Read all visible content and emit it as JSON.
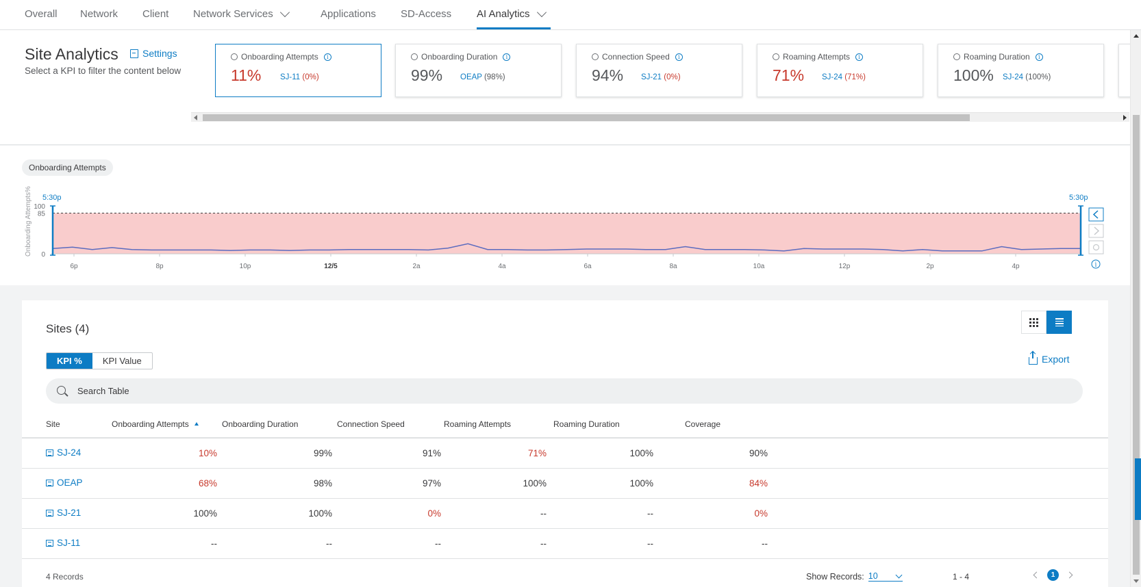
{
  "nav": {
    "tabs": [
      {
        "label": "Overall"
      },
      {
        "label": "Network"
      },
      {
        "label": "Client"
      },
      {
        "label": "Network Services"
      },
      {
        "label": "Applications"
      },
      {
        "label": "SD-Access"
      },
      {
        "label": "AI Analytics"
      }
    ],
    "active": "AI Analytics"
  },
  "site_analytics": {
    "title": "Site Analytics",
    "settings_label": "Settings",
    "subtitle": "Select a KPI to filter the content below",
    "kpis": [
      {
        "name": "Onboarding Attempts",
        "icon": "globe-icon",
        "value": "11%",
        "site": "SJ-11",
        "site_pct": "(0%)",
        "selected": true
      },
      {
        "name": "Onboarding Duration",
        "icon": "globe-icon",
        "value": "99%",
        "site": "OEAP",
        "site_pct": "(98%)",
        "selected": false
      },
      {
        "name": "Connection Speed",
        "icon": "signal-icon",
        "value": "94%",
        "site": "SJ-21",
        "site_pct": "(0%)",
        "selected": false
      },
      {
        "name": "Roaming Attempts",
        "icon": "clock-icon",
        "value": "71%",
        "site": "SJ-24",
        "site_pct": "(71%)",
        "selected": false
      },
      {
        "name": "Roaming Duration",
        "icon": "clock-icon",
        "value": "100%",
        "site": "SJ-24",
        "site_pct": "(100%)",
        "selected": false
      }
    ]
  },
  "chart": {
    "pill_label": "Onboarding Attempts",
    "ylabel": "Onboarding Attempts%",
    "y_ticks": [
      "100",
      "85",
      "0"
    ],
    "threshold": 85,
    "range_start_label": "5:30p",
    "range_end_label": "5:30p",
    "x_ticks": [
      "6p",
      "8p",
      "10p",
      "12/5",
      "2a",
      "4a",
      "6a",
      "8a",
      "10a",
      "12p",
      "2p",
      "4p"
    ]
  },
  "chart_data": {
    "type": "area",
    "xlabel": "",
    "ylabel": "Onboarding Attempts%",
    "ylim": [
      0,
      100
    ],
    "threshold": 85,
    "series": [
      {
        "values": [
          11,
          14,
          9,
          13,
          9,
          8,
          8,
          8,
          8,
          7,
          8,
          8,
          7,
          8,
          8,
          9,
          9,
          9,
          9,
          8,
          12,
          21,
          9,
          9,
          8,
          8,
          9,
          10,
          10,
          10,
          9,
          9,
          15,
          9,
          9,
          9,
          8,
          6,
          11,
          10,
          10,
          10,
          9,
          6,
          9,
          6,
          6,
          6,
          15,
          9,
          10,
          11,
          11
        ]
      }
    ]
  },
  "sites": {
    "title": "Sites (4)",
    "seg_kpi_pct": "KPI %",
    "seg_kpi_value": "KPI Value",
    "export_label": "Export",
    "search_placeholder": "Search Table",
    "columns": [
      "Site",
      "Onboarding Attempts",
      "Onboarding Duration",
      "Connection Speed",
      "Roaming Attempts",
      "Roaming Duration",
      "Coverage"
    ],
    "rows": [
      {
        "site": "SJ-24",
        "cells": [
          "10%",
          "99%",
          "91%",
          "71%",
          "100%",
          "90%"
        ],
        "red": [
          true,
          false,
          false,
          true,
          false,
          false
        ]
      },
      {
        "site": "OEAP",
        "cells": [
          "68%",
          "98%",
          "97%",
          "100%",
          "100%",
          "84%"
        ],
        "red": [
          true,
          false,
          false,
          false,
          false,
          true
        ]
      },
      {
        "site": "SJ-21",
        "cells": [
          "100%",
          "100%",
          "0%",
          "--",
          "--",
          "0%"
        ],
        "red": [
          false,
          false,
          true,
          false,
          false,
          true
        ]
      },
      {
        "site": "SJ-11",
        "cells": [
          "--",
          "--",
          "--",
          "--",
          "--",
          "--"
        ],
        "red": [
          false,
          false,
          false,
          false,
          false,
          false
        ]
      }
    ],
    "footer": {
      "records": "4 Records",
      "show_label": "Show Records:",
      "show_value": "10",
      "range": "1 - 4",
      "page": "1"
    }
  },
  "colors": {
    "accent": "#0d7cc4",
    "danger": "#c7392c",
    "threshold_fill": "#f9cccc",
    "line": "#5b6bbf"
  }
}
